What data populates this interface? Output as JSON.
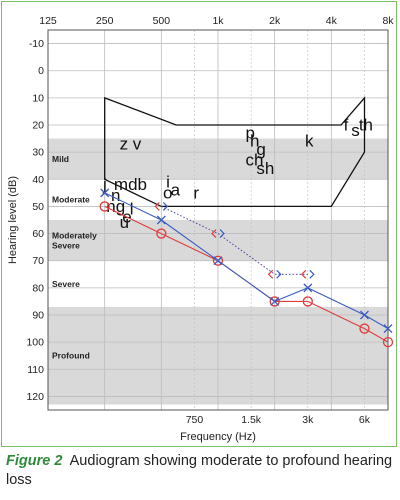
{
  "chart_data": {
    "type": "scatter",
    "title": "",
    "xlabel": "Frequency (Hz)",
    "ylabel": "Hearing level (dB)",
    "ylim": [
      -15,
      125
    ],
    "yticks": [
      -10,
      0,
      10,
      20,
      30,
      40,
      50,
      60,
      70,
      80,
      90,
      100,
      110,
      120
    ],
    "x_scale": "log2",
    "xlim_octaves": [
      125,
      8000
    ],
    "top_ticks": [
      {
        "label": "125",
        "hz": 125
      },
      {
        "label": "250",
        "hz": 250
      },
      {
        "label": "500",
        "hz": 500
      },
      {
        "label": "1k",
        "hz": 1000
      },
      {
        "label": "2k",
        "hz": 2000
      },
      {
        "label": "4k",
        "hz": 4000
      },
      {
        "label": "8k",
        "hz": 8000
      }
    ],
    "bottom_ticks": [
      {
        "label": "750",
        "hz": 750
      },
      {
        "label": "1.5k",
        "hz": 1500
      },
      {
        "label": "3k",
        "hz": 3000
      },
      {
        "label": "6k",
        "hz": 6000
      }
    ],
    "grid": true,
    "bands": [
      {
        "label": "Mild",
        "from": 25,
        "to": 40,
        "shaded": true
      },
      {
        "label": "Moderate",
        "from": 40,
        "to": 55,
        "shaded": false
      },
      {
        "label": "Moderately Severe",
        "from": 55,
        "to": 70,
        "shaded": true
      },
      {
        "label": "Severe",
        "from": 70,
        "to": 87,
        "shaded": false
      },
      {
        "label": "Profound",
        "from": 87,
        "to": 123,
        "shaded": true
      }
    ],
    "speech_banana": [
      {
        "hz": 250,
        "db": 10
      },
      {
        "hz": 600,
        "db": 20
      },
      {
        "hz": 4500,
        "db": 20
      },
      {
        "hz": 6000,
        "db": 10
      },
      {
        "hz": 6000,
        "db": 30
      },
      {
        "hz": 4000,
        "db": 50
      },
      {
        "hz": 500,
        "db": 50
      },
      {
        "hz": 250,
        "db": 40
      }
    ],
    "phonemes": [
      {
        "text": "z v",
        "hz": 300,
        "db": 29
      },
      {
        "text": "p",
        "hz": 1400,
        "db": 25
      },
      {
        "text": "h",
        "hz": 1480,
        "db": 28
      },
      {
        "text": "g",
        "hz": 1600,
        "db": 31
      },
      {
        "text": "ch",
        "hz": 1400,
        "db": 35
      },
      {
        "text": "sh",
        "hz": 1600,
        "db": 38
      },
      {
        "text": "k",
        "hz": 2900,
        "db": 28
      },
      {
        "text": "f",
        "hz": 4650,
        "db": 22
      },
      {
        "text": "s",
        "hz": 5100,
        "db": 24
      },
      {
        "text": "th",
        "hz": 5600,
        "db": 22
      },
      {
        "text": "j",
        "hz": 245,
        "db": 44
      },
      {
        "text": "mdb",
        "hz": 280,
        "db": 44
      },
      {
        "text": "n",
        "hz": 270,
        "db": 48
      },
      {
        "text": "ng",
        "hz": 255,
        "db": 52
      },
      {
        "text": "l",
        "hz": 340,
        "db": 53
      },
      {
        "text": "e",
        "hz": 310,
        "db": 56
      },
      {
        "text": "u",
        "hz": 300,
        "db": 58
      },
      {
        "text": "i",
        "hz": 530,
        "db": 43
      },
      {
        "text": "o",
        "hz": 510,
        "db": 47
      },
      {
        "text": "a",
        "hz": 560,
        "db": 46
      },
      {
        "text": "r",
        "hz": 740,
        "db": 47
      }
    ],
    "series": [
      {
        "marker": "circle",
        "color": "#e03c3c",
        "line": true,
        "points": [
          {
            "hz": 250,
            "db": 50
          },
          {
            "hz": 500,
            "db": 60
          },
          {
            "hz": 1000,
            "db": 70
          },
          {
            "hz": 2000,
            "db": 85
          },
          {
            "hz": 3000,
            "db": 85
          },
          {
            "hz": 6000,
            "db": 95
          },
          {
            "hz": 8000,
            "db": 100
          }
        ]
      },
      {
        "marker": "cross",
        "color": "#3a5cc4",
        "line": true,
        "points": [
          {
            "hz": 250,
            "db": 45
          },
          {
            "hz": 500,
            "db": 55
          },
          {
            "hz": 1000,
            "db": 70
          },
          {
            "hz": 2000,
            "db": 85
          },
          {
            "hz": 3000,
            "db": 80
          },
          {
            "hz": 6000,
            "db": 90
          },
          {
            "hz": 8000,
            "db": 95
          }
        ]
      },
      {
        "marker": "bracket-left",
        "color": "#e03c3c",
        "line": true,
        "dotted": true,
        "points": [
          {
            "hz": 500,
            "db": 50
          },
          {
            "hz": 1000,
            "db": 60
          },
          {
            "hz": 2000,
            "db": 75
          },
          {
            "hz": 3000,
            "db": 75
          }
        ]
      },
      {
        "marker": "bracket-right",
        "color": "#3a5cc4",
        "line": true,
        "dotted": true,
        "points": [
          {
            "hz": 500,
            "db": 50
          },
          {
            "hz": 1000,
            "db": 60
          },
          {
            "hz": 2000,
            "db": 75
          },
          {
            "hz": 3000,
            "db": 75
          }
        ]
      }
    ]
  },
  "caption": {
    "figure": "Figure 2",
    "text": "Audiogram showing moderate to profound hearing loss"
  }
}
